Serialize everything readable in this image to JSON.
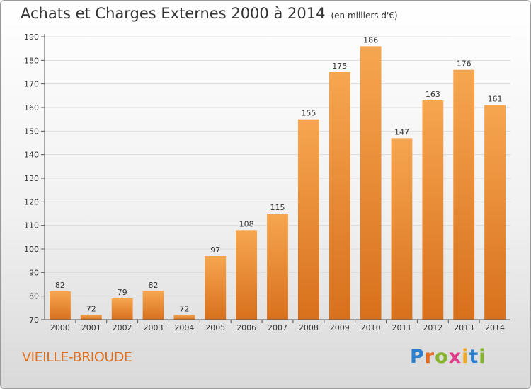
{
  "header": {
    "title": "Achats et Charges Externes 2000 à 2014",
    "subtitle": "(en milliers d'€)"
  },
  "footer": {
    "commune": "VIEILLE-BRIOUDE",
    "logo": [
      "P",
      "r",
      "o",
      "x",
      "i",
      "t",
      "i"
    ]
  },
  "colors": {
    "bar_light": "#f7a650",
    "bar_dark": "#d8701c",
    "axis": "#555555",
    "grid": "#dddddd"
  },
  "chart_data": {
    "type": "bar",
    "title": "Achats et Charges Externes 2000 à 2014",
    "subtitle": "(en milliers d'€)",
    "categories": [
      "2000",
      "2001",
      "2002",
      "2003",
      "2004",
      "2005",
      "2006",
      "2007",
      "2008",
      "2009",
      "2010",
      "2011",
      "2012",
      "2013",
      "2014"
    ],
    "values": [
      82,
      72,
      79,
      82,
      72,
      97,
      108,
      115,
      155,
      175,
      186,
      147,
      163,
      176,
      161
    ],
    "ylim": [
      70,
      190
    ],
    "yticks": [
      70,
      80,
      90,
      100,
      110,
      120,
      130,
      140,
      150,
      160,
      170,
      180,
      190
    ],
    "grid": true,
    "data_labels": true
  }
}
